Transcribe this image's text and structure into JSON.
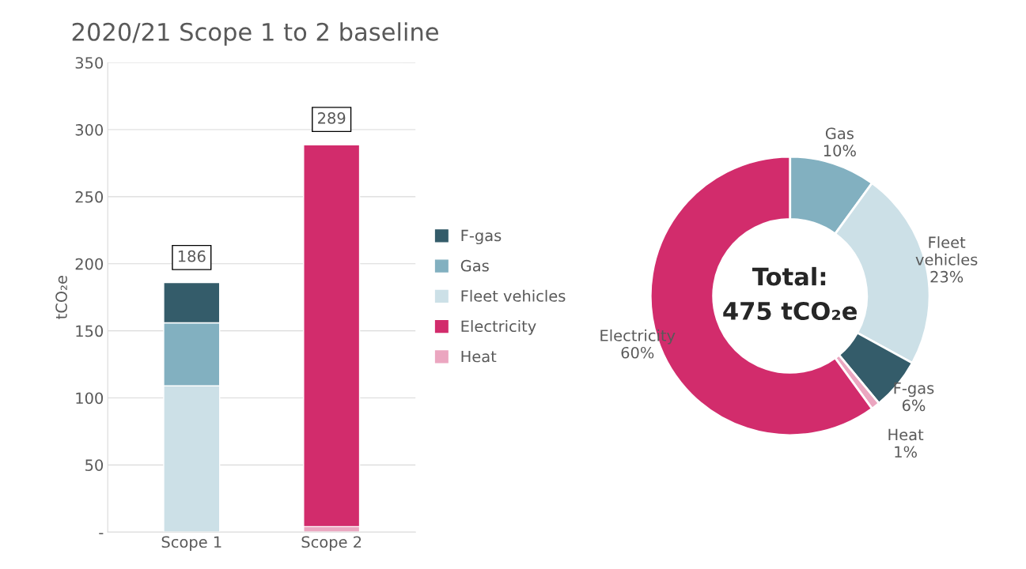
{
  "chart_data": [
    {
      "type": "bar",
      "title": "2020/21 Scope 1 to 2 baseline",
      "ylabel": "tCO₂e",
      "categories": [
        "Scope 1",
        "Scope 2"
      ],
      "stacked": true,
      "series": [
        {
          "name": "Heat",
          "color": "#eba6c0",
          "values": [
            null,
            4
          ]
        },
        {
          "name": "Electricity",
          "color": "#d22c6c",
          "values": [
            null,
            285
          ]
        },
        {
          "name": "Fleet vehicles",
          "color": "#cce0e7",
          "values": [
            109,
            null
          ]
        },
        {
          "name": "Gas",
          "color": "#82b0c0",
          "values": [
            47,
            null
          ]
        },
        {
          "name": "F-gas",
          "color": "#345c6a",
          "values": [
            30,
            null
          ]
        }
      ],
      "totals": [
        "186",
        "289"
      ],
      "ylim": [
        0,
        350
      ],
      "yticks": [
        {
          "value": 0,
          "label": "-"
        },
        50,
        100,
        150,
        200,
        250,
        300,
        350
      ],
      "grid": "y",
      "legend": "right"
    },
    {
      "type": "donut",
      "categories": [
        "Gas",
        "Fleet vehicles",
        "F-gas",
        "Heat",
        "Electricity"
      ],
      "values": [
        10,
        23,
        6,
        1,
        60
      ],
      "value_labels": [
        "10%",
        "23%",
        "6%",
        "1%",
        "60%"
      ],
      "colors": [
        "#82b0c0",
        "#cce0e7",
        "#345c6a",
        "#eba6c0",
        "#d22c6c"
      ],
      "annotations": [
        "Total:\n475 tCO₂e"
      ]
    }
  ]
}
